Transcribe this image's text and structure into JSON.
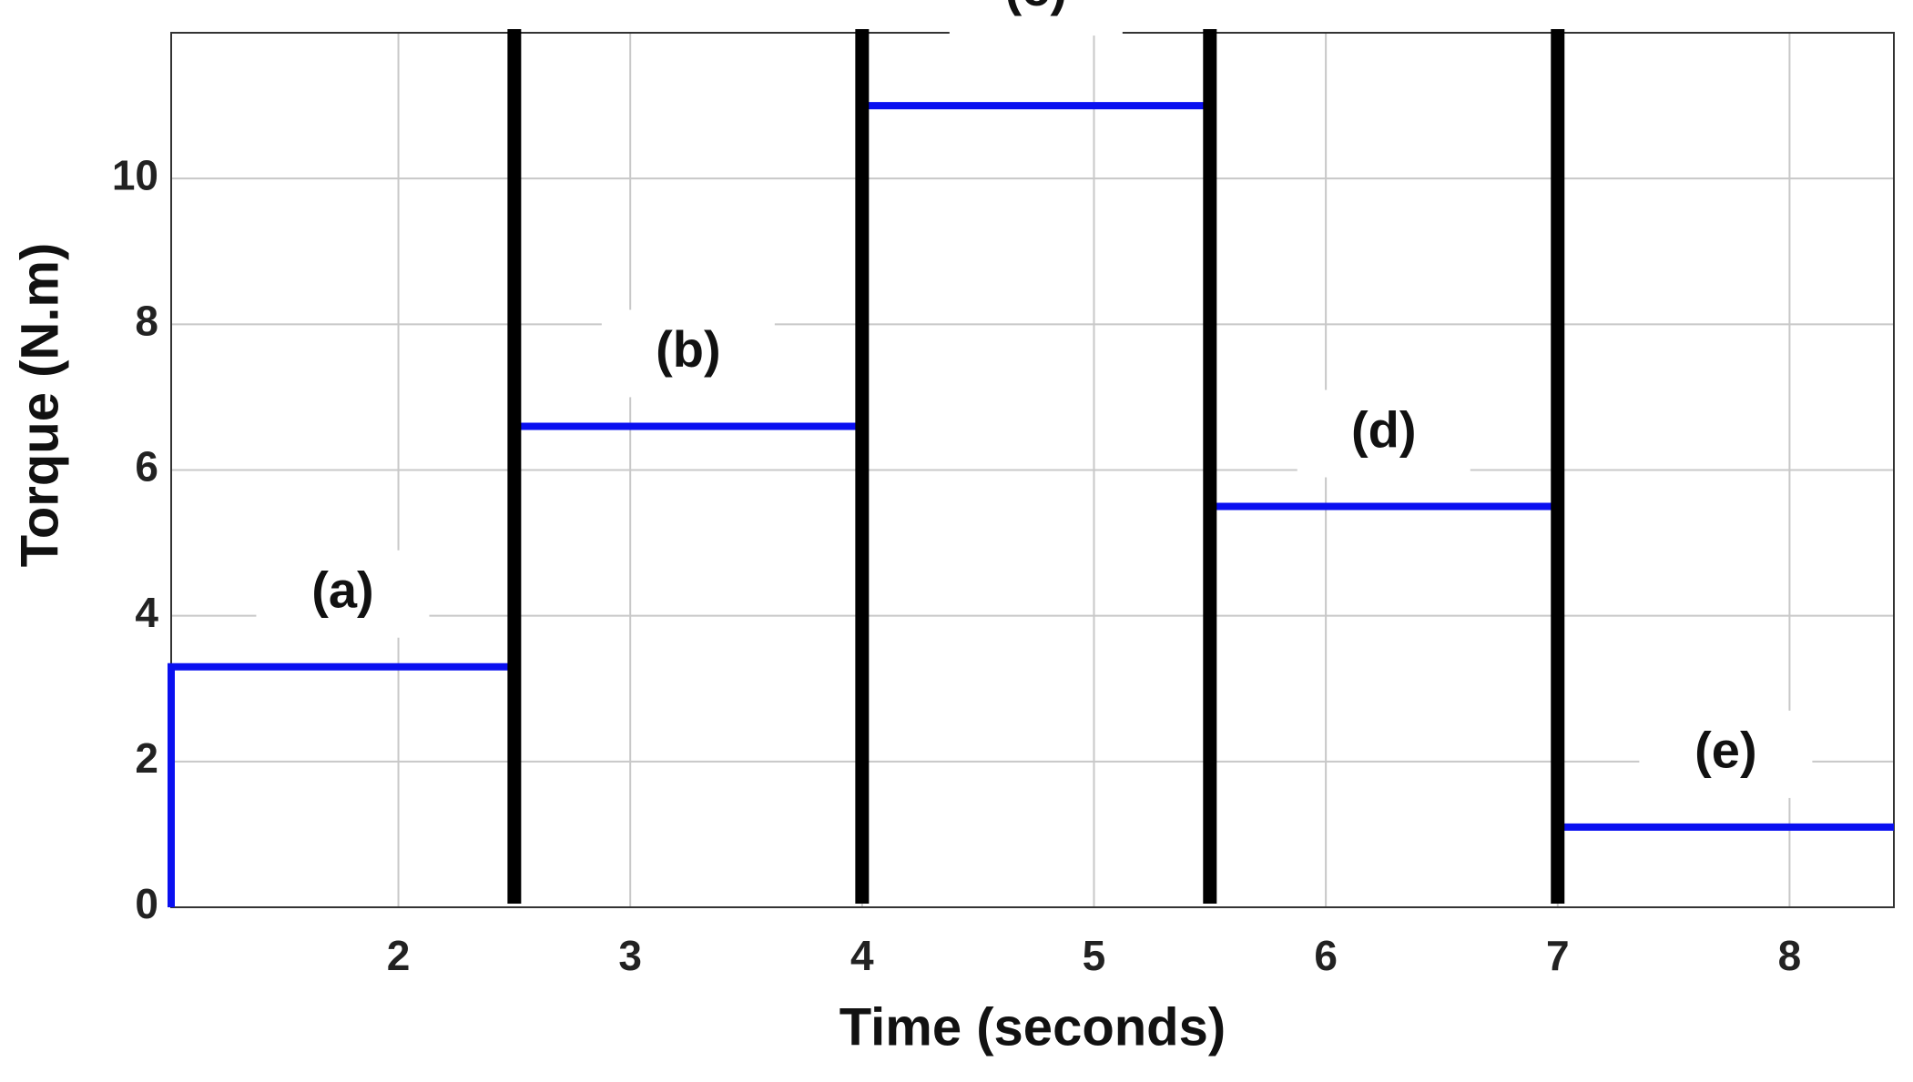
{
  "chart_data": {
    "type": "line",
    "xlabel": "Time (seconds)",
    "ylabel": "Torque  (N.m)",
    "xlim": [
      1.02,
      8.45
    ],
    "ylim": [
      0,
      12
    ],
    "xticks": [
      2,
      3,
      4,
      5,
      6,
      7,
      8
    ],
    "yticks": [
      0,
      2,
      4,
      6,
      8,
      10
    ],
    "grid": true,
    "series": [
      {
        "color": "#0a10f0",
        "x": [
          1.02,
          1.02,
          2.5,
          2.5,
          4,
          4,
          5.5,
          5.5,
          7,
          7,
          8.45
        ],
        "values": [
          0,
          3.3,
          3.3,
          6.6,
          6.6,
          11,
          11,
          5.5,
          5.5,
          1.1,
          1.1
        ]
      }
    ],
    "vlines": {
      "color": "#000000",
      "x": [
        2.5,
        4,
        5.5,
        7
      ]
    },
    "annotations": [
      "(a)",
      "(b)",
      "(c)",
      "(d)",
      "(e)"
    ]
  }
}
